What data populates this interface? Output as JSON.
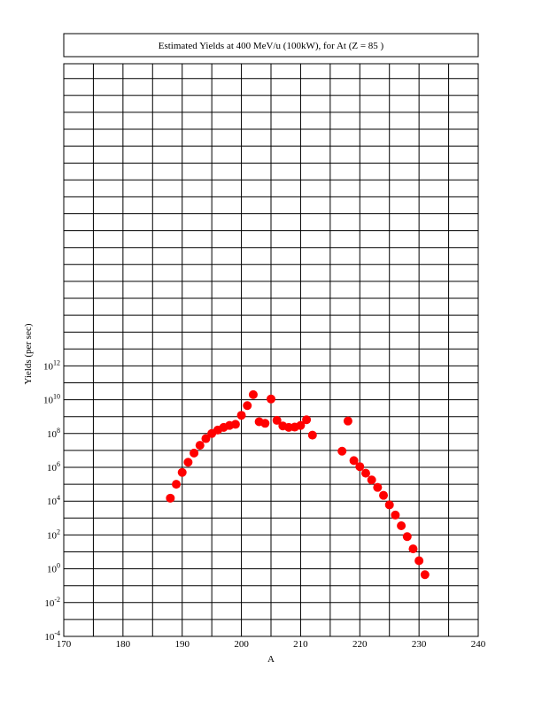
{
  "chart_data": {
    "type": "scatter",
    "title": "Estimated Yields at 400 MeV/u (100kW), for At (Z = 85 )",
    "xlabel": "A",
    "ylabel": "Yields (per sec)",
    "xlim": [
      170,
      240
    ],
    "ylim_exponent": [
      -4,
      13
    ],
    "y_scale": "log",
    "grid": true,
    "x_ticks": [
      "170",
      "180",
      "190",
      "200",
      "210",
      "220",
      "230",
      "240"
    ],
    "y_tick_base": "10",
    "y_tick_exponents": [
      "-4",
      "-2",
      "0",
      "2",
      "4",
      "6",
      "8",
      "10",
      "12"
    ],
    "marker_color": "#ff0000",
    "points": [
      {
        "x": 188,
        "y": 15000.0
      },
      {
        "x": 189,
        "y": 100000.0
      },
      {
        "x": 190,
        "y": 500000.0
      },
      {
        "x": 191,
        "y": 2000000.0
      },
      {
        "x": 192,
        "y": 7000000.0
      },
      {
        "x": 193,
        "y": 20000000.0
      },
      {
        "x": 194,
        "y": 50000000.0
      },
      {
        "x": 195,
        "y": 100000000.0
      },
      {
        "x": 196,
        "y": 160000000.0
      },
      {
        "x": 197,
        "y": 230000000.0
      },
      {
        "x": 198,
        "y": 300000000.0
      },
      {
        "x": 199,
        "y": 350000000.0
      },
      {
        "x": 200,
        "y": 1200000000.0
      },
      {
        "x": 201,
        "y": 4500000000.0
      },
      {
        "x": 202,
        "y": 20000000000.0
      },
      {
        "x": 203,
        "y": 500000000.0
      },
      {
        "x": 204,
        "y": 400000000.0
      },
      {
        "x": 205,
        "y": 11000000000.0
      },
      {
        "x": 206,
        "y": 600000000.0
      },
      {
        "x": 207,
        "y": 280000000.0
      },
      {
        "x": 208,
        "y": 230000000.0
      },
      {
        "x": 209,
        "y": 240000000.0
      },
      {
        "x": 210,
        "y": 300000000.0
      },
      {
        "x": 211,
        "y": 650000000.0
      },
      {
        "x": 212,
        "y": 80000000.0
      },
      {
        "x": 217,
        "y": 9000000.0
      },
      {
        "x": 218,
        "y": 550000000.0
      },
      {
        "x": 219,
        "y": 2500000.0
      },
      {
        "x": 220,
        "y": 1100000.0
      },
      {
        "x": 221,
        "y": 450000.0
      },
      {
        "x": 222,
        "y": 180000.0
      },
      {
        "x": 223,
        "y": 65000.0
      },
      {
        "x": 224,
        "y": 22000.0
      },
      {
        "x": 225,
        "y": 6000.0
      },
      {
        "x": 226,
        "y": 1500.0
      },
      {
        "x": 227,
        "y": 350.0
      },
      {
        "x": 228,
        "y": 80.0
      },
      {
        "x": 229,
        "y": 15.0
      },
      {
        "x": 230,
        "y": 3.0
      },
      {
        "x": 231,
        "y": 0.45
      }
    ]
  }
}
